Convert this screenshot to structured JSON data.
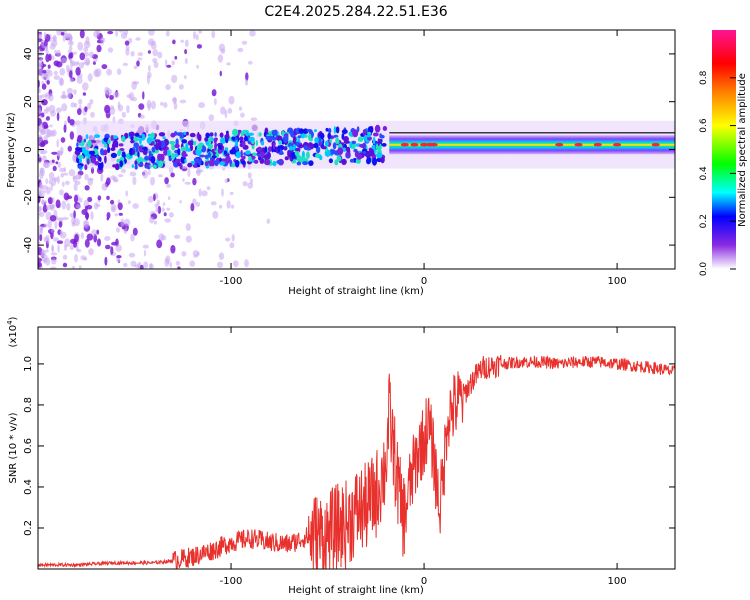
{
  "figure": {
    "title": "C2E4.2025.284.22.51.E36"
  },
  "chart_data": [
    {
      "type": "heatmap",
      "title": "C2E4.2025.284.22.51.E36",
      "xlabel": "Height of straight line (km)",
      "ylabel": "Frequency (Hz)",
      "xlim": [
        -200,
        130
      ],
      "ylim": [
        -50,
        50
      ],
      "xticks": [
        -100,
        0,
        100
      ],
      "xtick_labels": [
        "-100",
        "0",
        "100"
      ],
      "yticks": [
        -40,
        -20,
        0,
        20,
        40
      ],
      "ytick_labels": [
        "-40",
        "-20",
        "0",
        "20",
        "40"
      ],
      "colorbar": {
        "label": "Normalized spectral amplitude",
        "range": [
          0,
          1
        ],
        "ticks": [
          0.0,
          0.2,
          0.4,
          0.6,
          0.8
        ],
        "tick_labels": [
          "0.0",
          "0.2",
          "0.4",
          "0.6",
          "0.8"
        ],
        "colormap": [
          "#ffffff",
          "#8a2be2",
          "#0000ff",
          "#00ffff",
          "#00ff00",
          "#ffff00",
          "#ff8000",
          "#ff0000",
          "#ff1493"
        ]
      },
      "features": {
        "broadband_scatter_x": [
          -200,
          -120
        ],
        "band_center_hz": 2,
        "noisy_band_x": [
          -180,
          -20
        ],
        "clean_band_x": [
          -18,
          130
        ],
        "peak_amplitude_points_x": [
          -10,
          -5,
          0,
          3,
          5,
          70,
          80,
          90,
          100,
          120
        ]
      }
    },
    {
      "type": "line",
      "xlabel": "Height of straight line (km)",
      "ylabel": "SNR (10 * v/v)",
      "y_scale_label": "(x10",
      "y_scale_exponent": "4",
      "y_scale_suffix": ")",
      "xlim": [
        -200,
        130
      ],
      "ylim": [
        0,
        1.18
      ],
      "xticks": [
        -100,
        0,
        100
      ],
      "xtick_labels": [
        "-100",
        "0",
        "100"
      ],
      "yticks": [
        0.2,
        0.4,
        0.6,
        0.8,
        1.0
      ],
      "ytick_labels": [
        "0.2",
        "0.4",
        "0.6",
        "0.8",
        "1.0"
      ],
      "series": [
        {
          "name": "SNR",
          "color": "#e8302c",
          "x": [
            -200,
            -190,
            -180,
            -170,
            -160,
            -150,
            -140,
            -130,
            -120,
            -110,
            -100,
            -90,
            -80,
            -70,
            -60,
            -50,
            -45,
            -40,
            -35,
            -30,
            -25,
            -20,
            -18,
            -15,
            -12,
            -10,
            -8,
            -5,
            -2,
            0,
            2,
            5,
            8,
            10,
            12,
            15,
            20,
            25,
            30,
            35,
            40,
            50,
            60,
            70,
            80,
            90,
            100,
            110,
            120,
            130
          ],
          "y": [
            0.02,
            0.02,
            0.02,
            0.025,
            0.03,
            0.03,
            0.03,
            0.04,
            0.06,
            0.09,
            0.13,
            0.15,
            0.13,
            0.12,
            0.16,
            0.16,
            0.2,
            0.22,
            0.28,
            0.3,
            0.36,
            0.5,
            0.75,
            0.52,
            0.3,
            0.25,
            0.38,
            0.5,
            0.6,
            0.62,
            0.72,
            0.55,
            0.3,
            0.45,
            0.75,
            0.78,
            0.84,
            0.92,
            0.98,
            0.99,
            1.0,
            1.01,
            1.01,
            1.0,
            1.01,
            1.01,
            1.0,
            0.99,
            0.98,
            0.96
          ]
        }
      ]
    }
  ]
}
